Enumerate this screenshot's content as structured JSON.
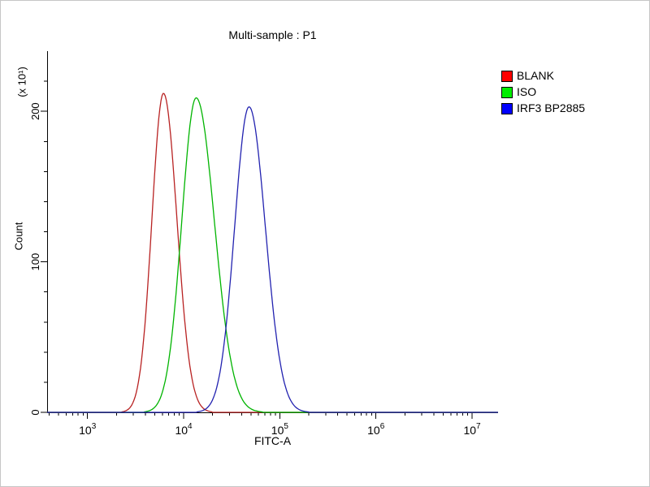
{
  "chart_data": {
    "type": "line",
    "title": "Multi-sample : P1",
    "xlabel": "FITC-A",
    "ylabel": "Count",
    "y_scale_label": "(x 10¹)",
    "x_scale": "log",
    "xlim_log10": [
      2.58,
      7.27
    ],
    "ylim": [
      0,
      240
    ],
    "yticks": [
      0,
      100,
      200
    ],
    "ytick_minor_step": 20,
    "xticks_exponents": [
      3,
      4,
      5,
      6,
      7
    ],
    "axis_color": "#000000",
    "grid": false,
    "legend_position": "right-top",
    "series": [
      {
        "name": "BLANK",
        "legend_color": "#ff0000",
        "color": "#b82222",
        "peak_log10x": 3.79,
        "sigma_left": 0.12,
        "sigma_right": 0.14,
        "peak_count": 212
      },
      {
        "name": "ISO",
        "legend_color": "#00ee00",
        "color": "#00b400",
        "peak_log10x": 4.13,
        "sigma_left": 0.15,
        "sigma_right": 0.19,
        "peak_count": 209
      },
      {
        "name": "IRF3 BP2885",
        "legend_color": "#0000ff",
        "color": "#2222b0",
        "peak_log10x": 4.68,
        "sigma_left": 0.15,
        "sigma_right": 0.17,
        "peak_count": 203
      }
    ]
  }
}
